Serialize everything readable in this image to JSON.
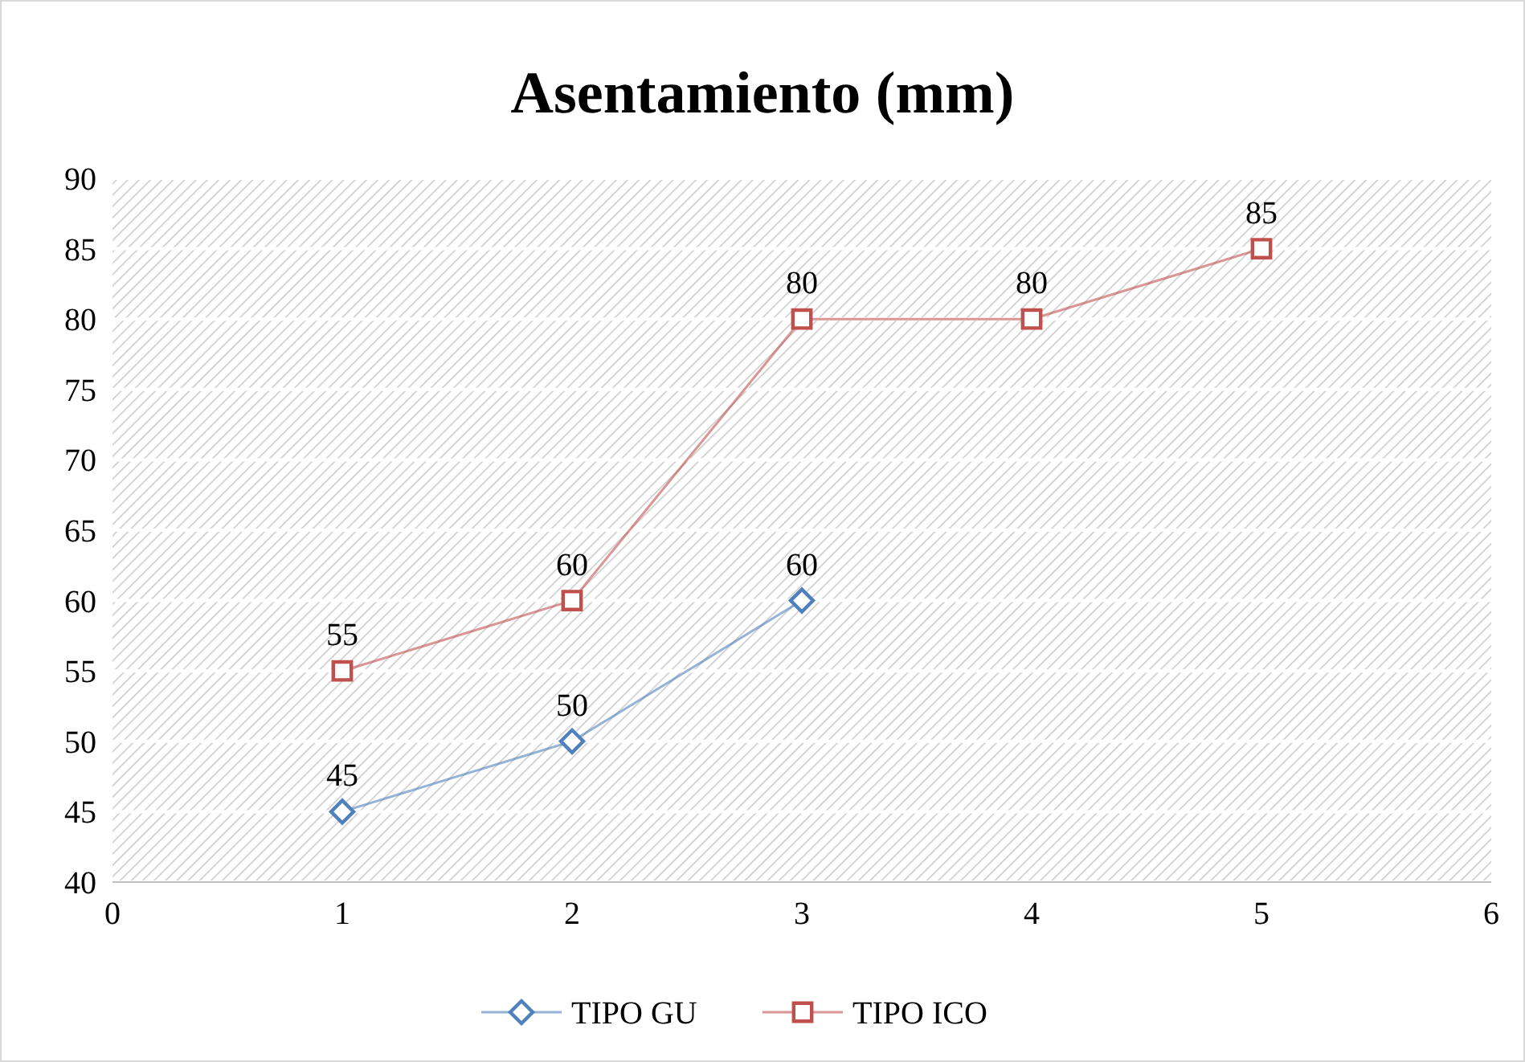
{
  "chart_data": {
    "type": "line",
    "title": "Asentamiento (mm)",
    "series": [
      {
        "name": "TIPO GU",
        "color": "#4f81bd",
        "marker": "diamond",
        "x": [
          1,
          2,
          3
        ],
        "values": [
          45,
          50,
          60
        ]
      },
      {
        "name": "TIPO ICO",
        "color": "#c0504d",
        "marker": "square",
        "x": [
          1,
          2,
          3,
          4,
          5
        ],
        "values": [
          55,
          60,
          80,
          80,
          85
        ]
      }
    ],
    "xlim": [
      0,
      6
    ],
    "xticks": [
      0,
      1,
      2,
      3,
      4,
      5,
      6
    ],
    "ylim": [
      40,
      90
    ],
    "yticks": [
      40,
      45,
      50,
      55,
      60,
      65,
      70,
      75,
      80,
      85,
      90
    ],
    "grid": "y",
    "legend": "bottom",
    "data_labels": true,
    "line_style": "solid"
  }
}
